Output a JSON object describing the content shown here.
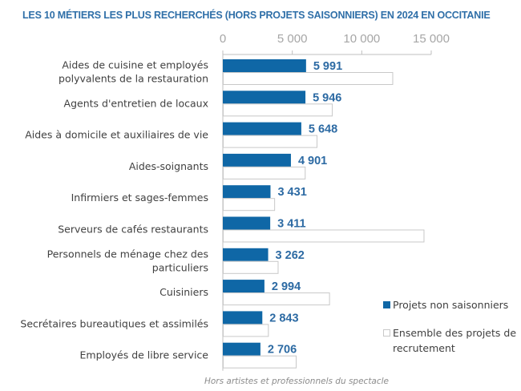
{
  "chart_data": {
    "type": "bar",
    "orientation": "horizontal",
    "title": "LES 10 MÉTIERS LES PLUS RECHERCHÉS (HORS PROJETS SAISONNIERS) EN 2024 EN OCCITANIE",
    "xlabel": "",
    "ylabel": "",
    "xlim": [
      0,
      15000
    ],
    "x_ticks": [
      0,
      5000,
      10000,
      15000
    ],
    "x_tick_labels": [
      "0",
      "5 000",
      "10 000",
      "15 000"
    ],
    "x_axis_position": "top",
    "grid": false,
    "legend_position": "bottom-right",
    "categories": [
      [
        "Aides de cuisine et employés",
        "polyvalents de la restauration"
      ],
      [
        "Agents d'entretien de locaux"
      ],
      [
        "Aides à domicile et auxiliaires de vie"
      ],
      [
        "Aides-soignants"
      ],
      [
        "Infirmiers et sages-femmes"
      ],
      [
        "Serveurs de cafés restaurants"
      ],
      [
        "Personnels de ménage chez des",
        "particuliers"
      ],
      [
        "Cuisiniers"
      ],
      [
        "Secrétaires bureautiques et assimilés"
      ],
      [
        "Employés de libre service"
      ]
    ],
    "series": [
      {
        "name": "Projets non saisonniers",
        "color": "#0f67a6",
        "values": [
          5991,
          5946,
          5648,
          4901,
          3431,
          3411,
          3262,
          2994,
          2843,
          2706
        ],
        "labels": [
          "5 991",
          "5 946",
          "5 648",
          "4 901",
          "3 431",
          "3 411",
          "3 262",
          "2 994",
          "2 843",
          "2 706"
        ]
      },
      {
        "name": "Ensemble des projets de recrutement",
        "legend_lines": [
          "Ensemble des projets de",
          "recrutement"
        ],
        "color": "#ffffff",
        "border": "#c8c8c8",
        "values": [
          12200,
          7850,
          6750,
          5900,
          3700,
          14450,
          3950,
          7650,
          3250,
          5250
        ]
      }
    ],
    "footnote": "Hors artistes et professionnels du spectacle"
  }
}
